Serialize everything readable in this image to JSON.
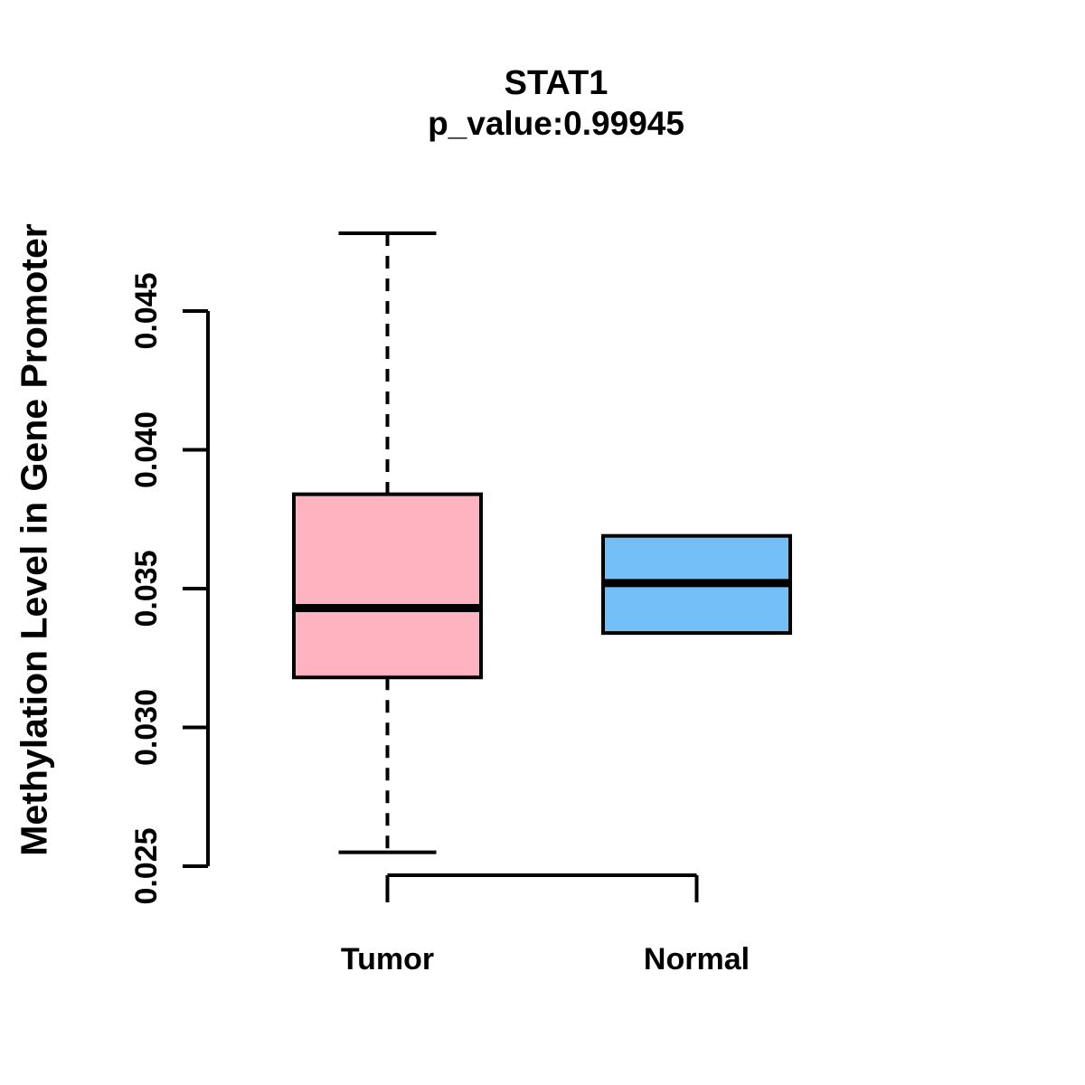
{
  "page": {
    "background": "#ffffff"
  },
  "chart_data": {
    "type": "boxplot",
    "title": "STAT1",
    "subtitle": "p_value:0.99945",
    "ylabel": "Methylation Level in Gene Promoter",
    "xlabel": "",
    "ylim": [
      0.025,
      0.045
    ],
    "yticks": {
      "values": [
        0.025,
        0.03,
        0.035,
        0.04,
        0.045
      ],
      "labels": [
        "0.025",
        "0.030",
        "0.035",
        "0.040",
        "0.045"
      ]
    },
    "grid": false,
    "legend": "none",
    "axis_color": "#000000",
    "median_color": "#000000",
    "box_border_color": "#000000",
    "categories": [
      "Tumor",
      "Normal"
    ],
    "groups": [
      {
        "label": "Tumor",
        "fill": "#FFB3C1",
        "whisker_linestyle": "dashed",
        "stats": {
          "whisker_low": 0.0255,
          "q1": 0.0318,
          "median": 0.0343,
          "q3": 0.0384,
          "whisker_high": 0.0478
        }
      },
      {
        "label": "Normal",
        "fill": "#74BFF7",
        "whisker_linestyle": "dashed",
        "stats": {
          "whisker_low": 0.0334,
          "q1": 0.0334,
          "median": 0.0352,
          "q3": 0.0369,
          "whisker_high": 0.0369
        }
      }
    ]
  }
}
